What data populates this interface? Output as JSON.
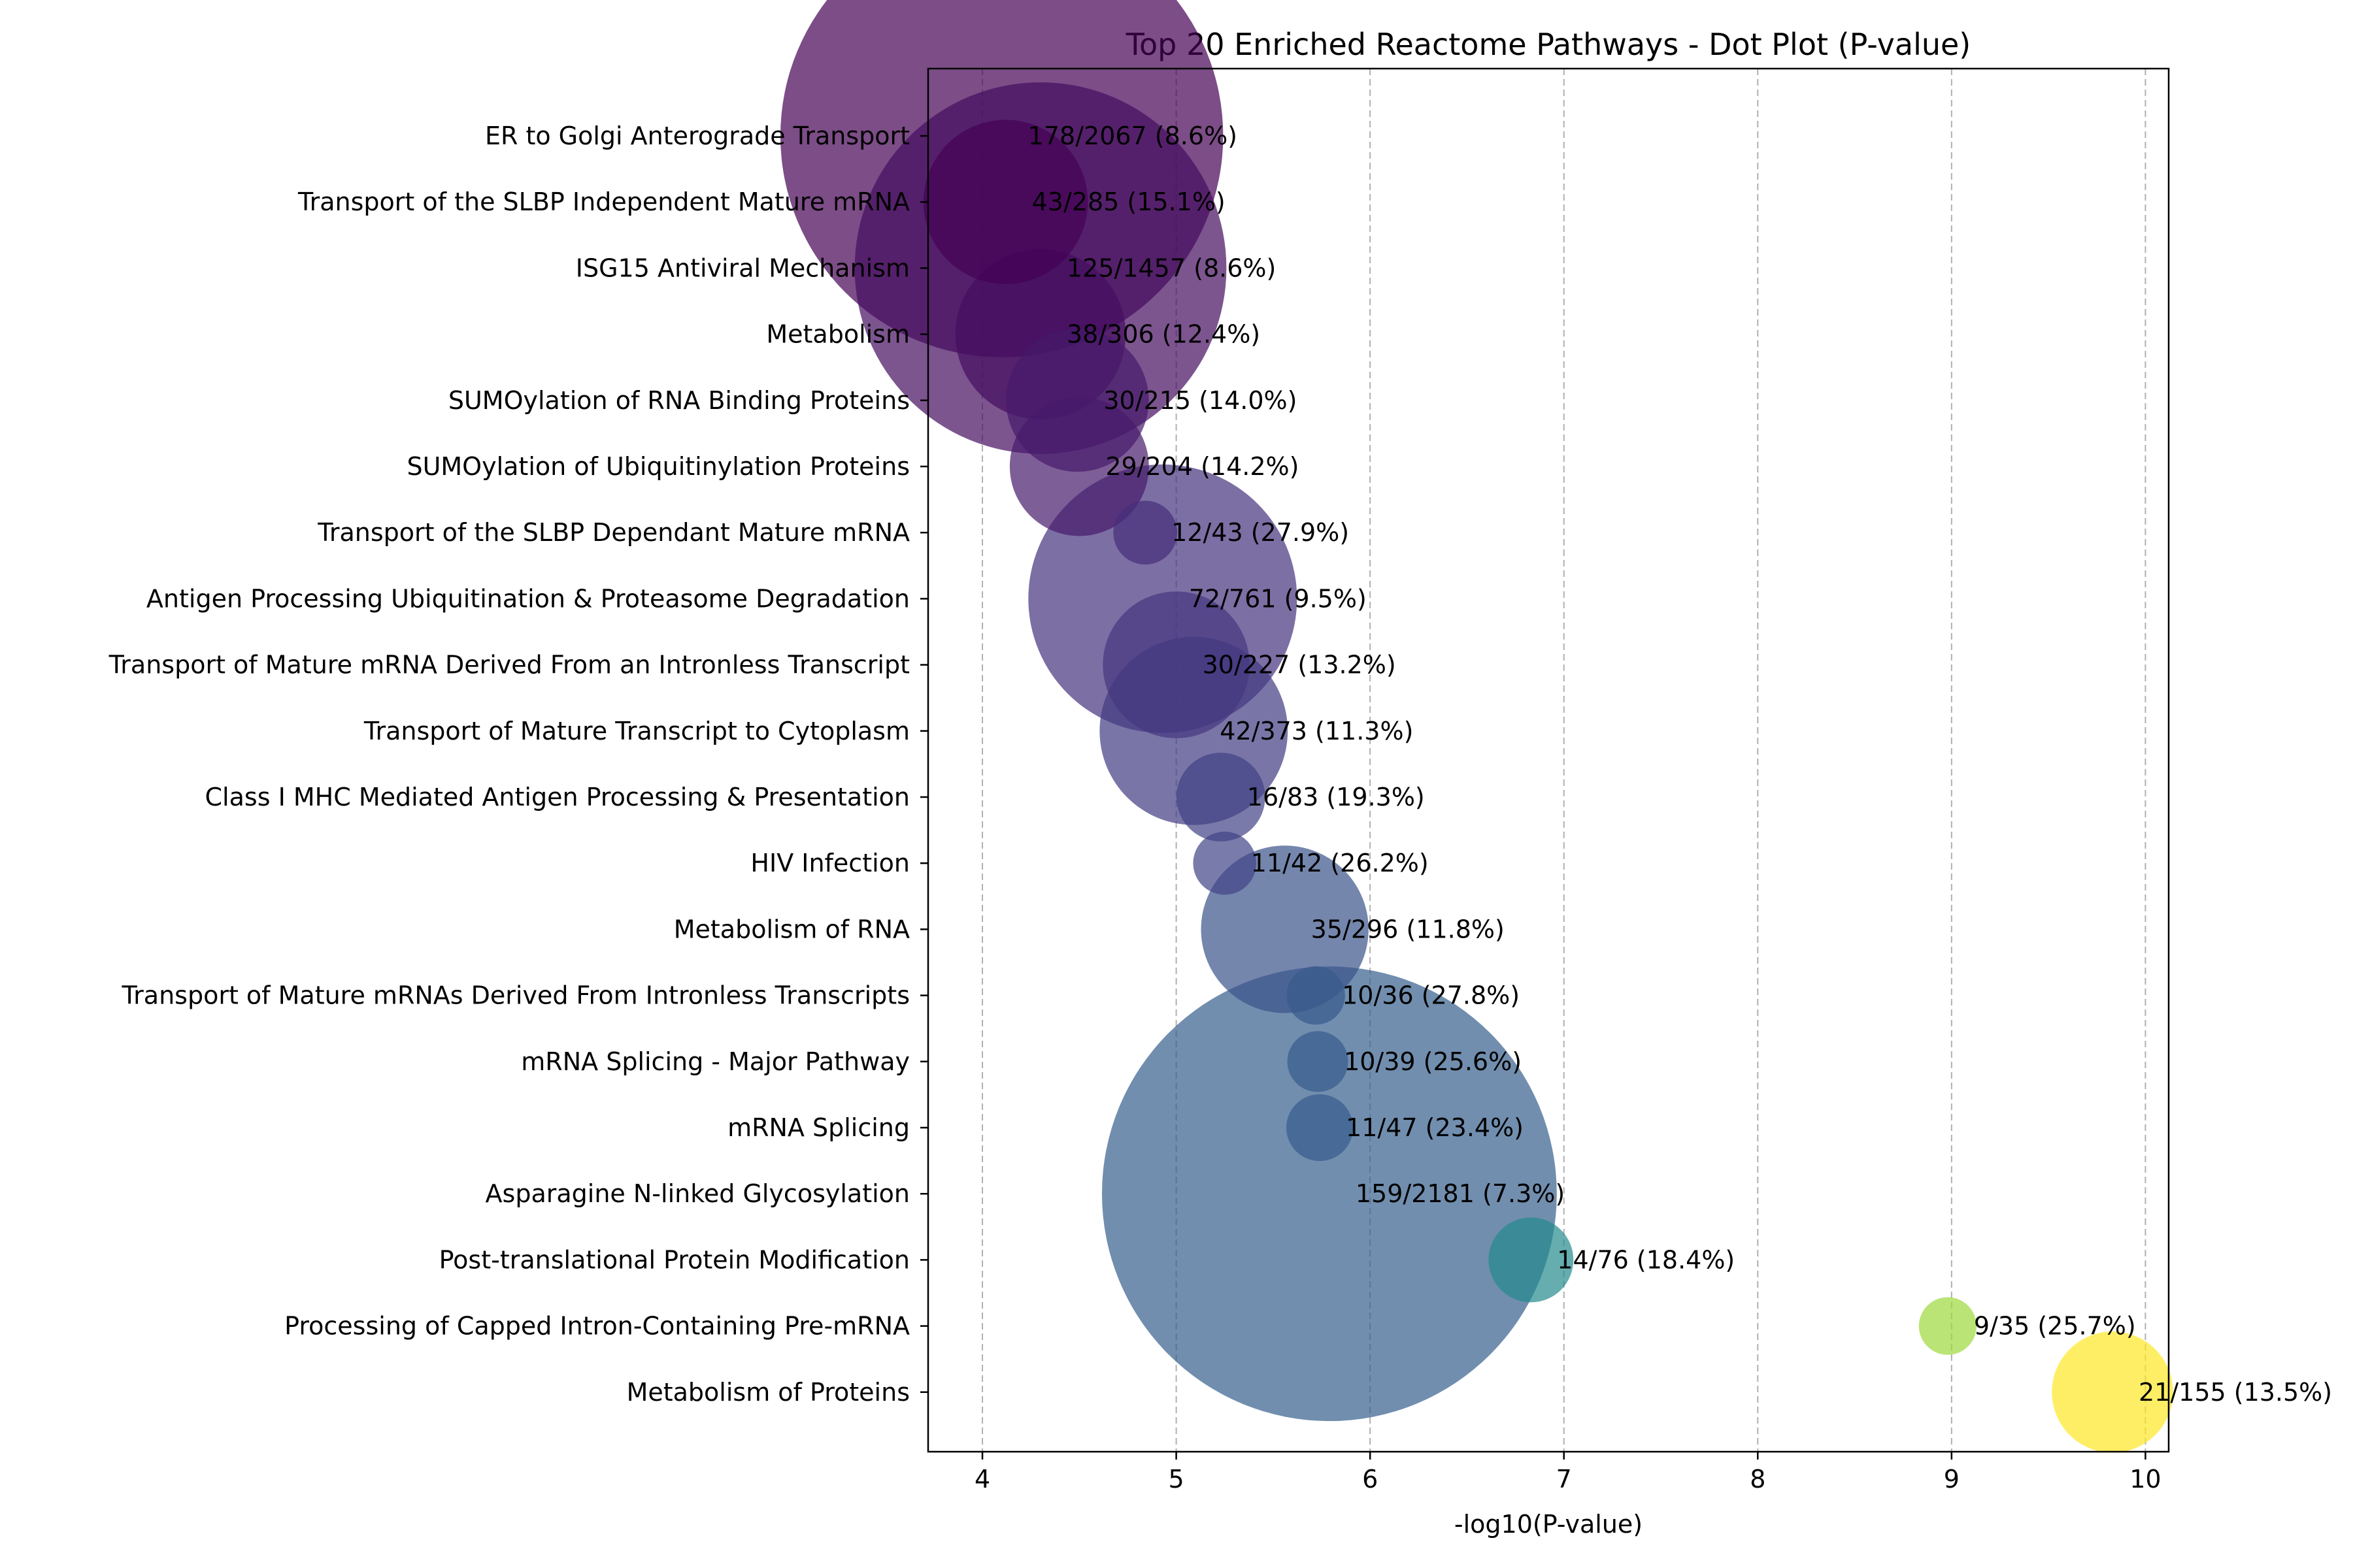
{
  "chart_data": {
    "type": "scatter",
    "title": "Top 20 Enriched Reactome Pathways - Dot Plot (P-value)",
    "xlabel": "-log10(P-value)",
    "ylabel": "",
    "xlim": [
      3.72,
      10.12
    ],
    "xticks": [
      4,
      5,
      6,
      7,
      8,
      9,
      10
    ],
    "grid": "x-dashed",
    "colormap": "viridis",
    "size_encodes": "pathway size",
    "points": [
      {
        "pathway": "ER to Golgi Anterograde Transport",
        "x": 4.1,
        "hits": 178,
        "total": 2067,
        "label": "178/2067 (8.6%)"
      },
      {
        "pathway": "Transport of the SLBP Independent Mature mRNA",
        "x": 4.12,
        "hits": 43,
        "total": 285,
        "label": "43/285 (15.1%)"
      },
      {
        "pathway": "ISG15 Antiviral Mechanism",
        "x": 4.3,
        "hits": 125,
        "total": 1457,
        "label": "125/1457 (8.6%)"
      },
      {
        "pathway": "Metabolism",
        "x": 4.3,
        "hits": 38,
        "total": 306,
        "label": "38/306 (12.4%)"
      },
      {
        "pathway": "SUMOylation of RNA Binding Proteins",
        "x": 4.49,
        "hits": 30,
        "total": 215,
        "label": "30/215 (14.0%)"
      },
      {
        "pathway": "SUMOylation of Ubiquitinylation Proteins",
        "x": 4.5,
        "hits": 29,
        "total": 204,
        "label": "29/204 (14.2%)"
      },
      {
        "pathway": "Transport of the SLBP Dependant Mature mRNA",
        "x": 4.84,
        "hits": 12,
        "total": 43,
        "label": "12/43 (27.9%)"
      },
      {
        "pathway": "Antigen Processing Ubiquitination & Proteasome Degradation",
        "x": 4.93,
        "hits": 72,
        "total": 761,
        "label": "72/761 (9.5%)"
      },
      {
        "pathway": "Transport of Mature mRNA Derived From an Intronless Transcript",
        "x": 5.0,
        "hits": 30,
        "total": 227,
        "label": "30/227 (13.2%)"
      },
      {
        "pathway": "Transport of Mature Transcript to Cytoplasm",
        "x": 5.09,
        "hits": 42,
        "total": 373,
        "label": "42/373 (11.3%)"
      },
      {
        "pathway": "Class I MHC Mediated Antigen Processing & Presentation",
        "x": 5.23,
        "hits": 16,
        "total": 83,
        "label": "16/83 (19.3%)"
      },
      {
        "pathway": "HIV Infection",
        "x": 5.25,
        "hits": 11,
        "total": 42,
        "label": "11/42 (26.2%)"
      },
      {
        "pathway": "Metabolism of RNA",
        "x": 5.56,
        "hits": 35,
        "total": 296,
        "label": "35/296 (11.8%)"
      },
      {
        "pathway": "Transport of Mature mRNAs Derived From Intronless Transcripts",
        "x": 5.72,
        "hits": 10,
        "total": 36,
        "label": "10/36 (27.8%)"
      },
      {
        "pathway": "mRNA Splicing - Major Pathway",
        "x": 5.73,
        "hits": 10,
        "total": 39,
        "label": "10/39 (25.6%)"
      },
      {
        "pathway": "mRNA Splicing",
        "x": 5.74,
        "hits": 11,
        "total": 47,
        "label": "11/47 (23.4%)"
      },
      {
        "pathway": "Asparagine N-linked Glycosylation",
        "x": 5.79,
        "hits": 159,
        "total": 2181,
        "label": "159/2181 (7.3%)"
      },
      {
        "pathway": "Post-translational Protein Modification",
        "x": 6.83,
        "hits": 14,
        "total": 76,
        "label": "14/76 (18.4%)"
      },
      {
        "pathway": "Processing of Capped Intron-Containing Pre-mRNA",
        "x": 8.98,
        "hits": 9,
        "total": 35,
        "label": "9/35 (25.7%)"
      },
      {
        "pathway": "Metabolism of Proteins",
        "x": 9.83,
        "hits": 21,
        "total": 155,
        "label": "21/155 (13.5%)"
      }
    ]
  }
}
